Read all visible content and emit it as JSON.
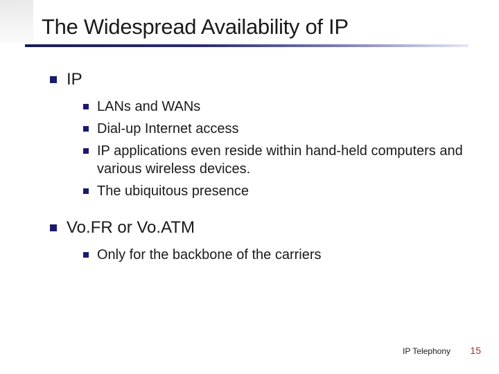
{
  "slide": {
    "title": "The Widespread Availability of IP",
    "sections": [
      {
        "heading": "IP",
        "items": [
          "LANs and WANs",
          "Dial-up Internet access",
          "IP applications even reside within hand-held computers and various wireless devices.",
          "The ubiquitous presence"
        ]
      },
      {
        "heading": "Vo.FR or Vo.ATM",
        "items": [
          "Only for the backbone of the carriers"
        ]
      }
    ],
    "footer_label": "IP Telephony",
    "page_number": "15"
  },
  "style": {
    "title_color": "#1a1a1a",
    "title_fontsize": 31,
    "bullet_color": "#1a1a6e",
    "l1_fontsize": 24,
    "l2_fontsize": 20,
    "page_number_color": "#a03030",
    "underline_gradient": [
      "#1a1a5e",
      "#2a2a7a",
      "#7a7abb",
      "#e6e6f7"
    ],
    "background_color": "#ffffff"
  }
}
